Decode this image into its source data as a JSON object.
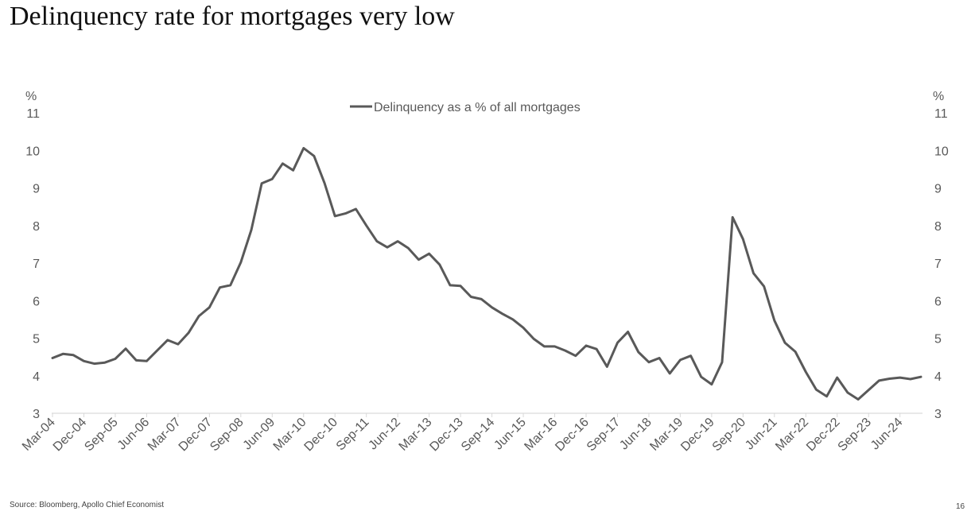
{
  "title": "Delinquency rate for mortgages very low",
  "source": "Source: Bloomberg, Apollo Chief Economist",
  "page_number": "16",
  "colors": {
    "line": "#595959",
    "text": "#595959",
    "axis": "#d9d9d9"
  },
  "chart_data": {
    "type": "line",
    "title": "",
    "xlabel": "",
    "ylabel_left": "%",
    "ylabel_right": "%",
    "ylim": [
      3,
      11
    ],
    "yticks": [
      3,
      4,
      5,
      6,
      7,
      8,
      9,
      10,
      11
    ],
    "grid": false,
    "legend_position": "top-center",
    "x_tick_labels": [
      "Mar-04",
      "Dec-04",
      "Sep-05",
      "Jun-06",
      "Mar-07",
      "Dec-07",
      "Sep-08",
      "Jun-09",
      "Mar-10",
      "Dec-10",
      "Sep-11",
      "Jun-12",
      "Mar-13",
      "Dec-13",
      "Sep-14",
      "Jun-15",
      "Mar-16",
      "Dec-16",
      "Sep-17",
      "Jun-18",
      "Mar-19",
      "Dec-19",
      "Sep-20",
      "Jun-21",
      "Mar-22",
      "Dec-22",
      "Sep-23",
      "Jun-24"
    ],
    "series": [
      {
        "name": "Delinquency as a % of all mortgages",
        "x": [
          "Mar-04",
          "Jun-04",
          "Sep-04",
          "Dec-04",
          "Mar-05",
          "Jun-05",
          "Sep-05",
          "Dec-05",
          "Mar-06",
          "Jun-06",
          "Sep-06",
          "Dec-06",
          "Mar-07",
          "Jun-07",
          "Sep-07",
          "Dec-07",
          "Mar-08",
          "Jun-08",
          "Sep-08",
          "Dec-08",
          "Mar-09",
          "Jun-09",
          "Sep-09",
          "Dec-09",
          "Mar-10",
          "Jun-10",
          "Sep-10",
          "Dec-10",
          "Mar-11",
          "Jun-11",
          "Sep-11",
          "Dec-11",
          "Mar-12",
          "Jun-12",
          "Sep-12",
          "Dec-12",
          "Mar-13",
          "Jun-13",
          "Sep-13",
          "Dec-13",
          "Mar-14",
          "Jun-14",
          "Sep-14",
          "Dec-14",
          "Mar-15",
          "Jun-15",
          "Sep-15",
          "Dec-15",
          "Mar-16",
          "Jun-16",
          "Sep-16",
          "Dec-16",
          "Mar-17",
          "Jun-17",
          "Sep-17",
          "Dec-17",
          "Mar-18",
          "Jun-18",
          "Sep-18",
          "Dec-18",
          "Mar-19",
          "Jun-19",
          "Sep-19",
          "Dec-19",
          "Mar-20",
          "Jun-20",
          "Sep-20",
          "Dec-20",
          "Mar-21",
          "Jun-21",
          "Sep-21",
          "Dec-21",
          "Mar-22",
          "Jun-22",
          "Sep-22",
          "Dec-22",
          "Mar-23",
          "Jun-23",
          "Sep-23",
          "Dec-23",
          "Mar-24",
          "Jun-24",
          "Sep-24",
          "Dec-24"
        ],
        "values": [
          4.47,
          4.58,
          4.55,
          4.39,
          4.32,
          4.35,
          4.45,
          4.72,
          4.41,
          4.39,
          4.67,
          4.95,
          4.84,
          5.14,
          5.59,
          5.82,
          6.35,
          6.41,
          7.02,
          7.88,
          9.12,
          9.24,
          9.65,
          9.47,
          10.06,
          9.85,
          9.13,
          8.25,
          8.32,
          8.44,
          8.0,
          7.58,
          7.42,
          7.58,
          7.4,
          7.09,
          7.25,
          6.96,
          6.41,
          6.39,
          6.1,
          6.04,
          5.82,
          5.65,
          5.5,
          5.28,
          4.98,
          4.78,
          4.78,
          4.67,
          4.53,
          4.8,
          4.71,
          4.24,
          4.88,
          5.17,
          4.63,
          4.36,
          4.47,
          4.06,
          4.42,
          4.53,
          3.97,
          3.77,
          4.36,
          8.22,
          7.64,
          6.73,
          6.38,
          5.47,
          4.88,
          4.64,
          4.1,
          3.63,
          3.45,
          3.95,
          3.55,
          3.37,
          3.62,
          3.87,
          3.92,
          3.95,
          3.91,
          3.97
        ]
      }
    ]
  }
}
